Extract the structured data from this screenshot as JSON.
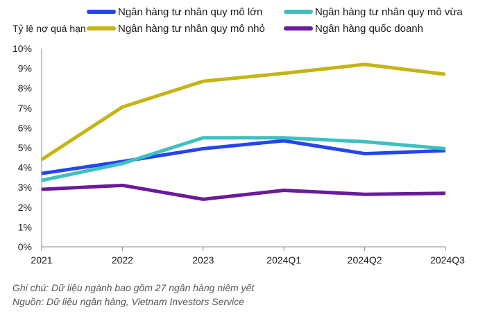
{
  "chart_data": {
    "type": "line",
    "ylabel": "Tỷ lệ nợ quá hạn",
    "categories": [
      "2021",
      "2022",
      "2023",
      "2024Q1",
      "2024Q2",
      "2024Q3"
    ],
    "y_ticks": [
      "0%",
      "1%",
      "2%",
      "3%",
      "4%",
      "5%",
      "6%",
      "7%",
      "8%",
      "9%",
      "10%"
    ],
    "ylim": [
      0,
      10
    ],
    "grid": false,
    "legend_position": "top",
    "series": [
      {
        "name": "Ngân hàng tư nhân quy mô lớn",
        "color": "#2545ee",
        "values": [
          3.7,
          4.3,
          4.95,
          5.35,
          4.7,
          4.85
        ]
      },
      {
        "name": "Ngân hàng tư nhân quy mô vừa",
        "color": "#3ec0c0",
        "values": [
          3.35,
          4.2,
          5.5,
          5.5,
          5.3,
          4.95
        ]
      },
      {
        "name": "Ngân hàng tư nhân quy mô nhỏ",
        "color": "#c4b414",
        "values": [
          4.4,
          7.05,
          8.35,
          8.75,
          9.2,
          8.7
        ]
      },
      {
        "name": "Ngân hàng quốc doanh",
        "color": "#6a1a9a",
        "values": [
          2.9,
          3.1,
          2.4,
          2.85,
          2.65,
          2.7
        ]
      }
    ]
  },
  "notes": {
    "note": "Ghi chú: Dữ liệu ngành bao gồm 27 ngân hàng niêm yết",
    "source": "Nguồn: Dữ liệu ngân hàng, Vietnam Investors Service"
  }
}
